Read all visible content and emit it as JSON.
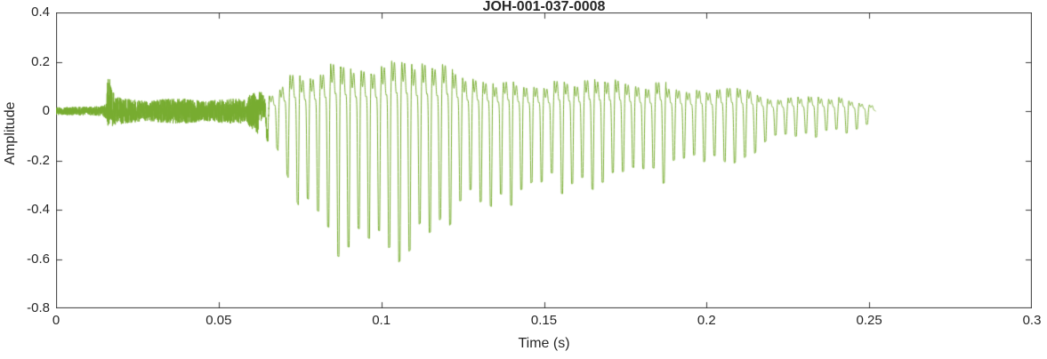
{
  "chart_data": {
    "type": "line",
    "title": "JOH-001-037-0008",
    "xlabel": "Time (s)",
    "ylabel": "Amplitude",
    "xlim": [
      0,
      0.3
    ],
    "ylim": [
      -0.8,
      0.4
    ],
    "x_ticks": [
      0,
      0.05,
      0.1,
      0.15,
      0.2,
      0.25,
      0.3
    ],
    "x_tick_labels": [
      "0",
      "0.05",
      "0.1",
      "0.15",
      "0.2",
      "0.25",
      "0.3"
    ],
    "y_ticks": [
      0.4,
      0.2,
      0,
      -0.2,
      -0.4,
      -0.6,
      -0.8
    ],
    "y_tick_labels": [
      "0.4",
      "0.2",
      "0",
      "-0.2",
      "-0.4",
      "-0.6",
      "-0.8"
    ],
    "grid": false,
    "legend": null,
    "line_color": "#77ac30",
    "axis_color": "#3a3a3a",
    "text_color": "#262626",
    "signal": {
      "description": "speech waveform amplitude envelope (hi = positive peak, lo = negative peak)",
      "t_end": 0.252,
      "fundamental_hz": 320,
      "harmonics": [
        1.0,
        0.55,
        0.35
      ],
      "harmonic_phases": [
        0,
        1.3,
        2.4
      ],
      "envelope": [
        {
          "t": 0.0,
          "hi": 0.015,
          "lo": -0.015
        },
        {
          "t": 0.014,
          "hi": 0.02,
          "lo": -0.02
        },
        {
          "t": 0.0155,
          "hi": 0.03,
          "lo": -0.03
        },
        {
          "t": 0.016,
          "hi": 0.155,
          "lo": -0.07
        },
        {
          "t": 0.018,
          "hi": 0.06,
          "lo": -0.06
        },
        {
          "t": 0.022,
          "hi": 0.05,
          "lo": -0.05
        },
        {
          "t": 0.028,
          "hi": 0.04,
          "lo": -0.04
        },
        {
          "t": 0.034,
          "hi": 0.05,
          "lo": -0.05
        },
        {
          "t": 0.04,
          "hi": 0.05,
          "lo": -0.05
        },
        {
          "t": 0.046,
          "hi": 0.04,
          "lo": -0.04
        },
        {
          "t": 0.052,
          "hi": 0.05,
          "lo": -0.05
        },
        {
          "t": 0.058,
          "hi": 0.05,
          "lo": -0.05
        },
        {
          "t": 0.061,
          "hi": 0.08,
          "lo": -0.08
        },
        {
          "t": 0.064,
          "hi": 0.13,
          "lo": -0.12
        },
        {
          "t": 0.068,
          "hi": 0.16,
          "lo": -0.2
        },
        {
          "t": 0.072,
          "hi": 0.3,
          "lo": -0.35
        },
        {
          "t": 0.076,
          "hi": 0.32,
          "lo": -0.48
        },
        {
          "t": 0.08,
          "hi": 0.3,
          "lo": -0.52
        },
        {
          "t": 0.084,
          "hi": 0.33,
          "lo": -0.55
        },
        {
          "t": 0.088,
          "hi": 0.34,
          "lo": -0.57
        },
        {
          "t": 0.092,
          "hi": 0.35,
          "lo": -0.58
        },
        {
          "t": 0.096,
          "hi": 0.34,
          "lo": -0.6
        },
        {
          "t": 0.1,
          "hi": 0.36,
          "lo": -0.62
        },
        {
          "t": 0.104,
          "hi": 0.35,
          "lo": -0.6
        },
        {
          "t": 0.108,
          "hi": 0.35,
          "lo": -0.56
        },
        {
          "t": 0.112,
          "hi": 0.36,
          "lo": -0.52
        },
        {
          "t": 0.116,
          "hi": 0.34,
          "lo": -0.5
        },
        {
          "t": 0.12,
          "hi": 0.33,
          "lo": -0.46
        },
        {
          "t": 0.124,
          "hi": 0.31,
          "lo": -0.42
        },
        {
          "t": 0.128,
          "hi": 0.25,
          "lo": -0.4
        },
        {
          "t": 0.132,
          "hi": 0.21,
          "lo": -0.38
        },
        {
          "t": 0.136,
          "hi": 0.22,
          "lo": -0.41
        },
        {
          "t": 0.14,
          "hi": 0.26,
          "lo": -0.43
        },
        {
          "t": 0.144,
          "hi": 0.23,
          "lo": -0.41
        },
        {
          "t": 0.148,
          "hi": 0.21,
          "lo": -0.36
        },
        {
          "t": 0.152,
          "hi": 0.22,
          "lo": -0.33
        },
        {
          "t": 0.156,
          "hi": 0.23,
          "lo": -0.34
        },
        {
          "t": 0.16,
          "hi": 0.21,
          "lo": -0.32
        },
        {
          "t": 0.164,
          "hi": 0.23,
          "lo": -0.31
        },
        {
          "t": 0.168,
          "hi": 0.26,
          "lo": -0.33
        },
        {
          "t": 0.172,
          "hi": 0.28,
          "lo": -0.31
        },
        {
          "t": 0.176,
          "hi": 0.25,
          "lo": -0.29
        },
        {
          "t": 0.18,
          "hi": 0.22,
          "lo": -0.3
        },
        {
          "t": 0.184,
          "hi": 0.21,
          "lo": -0.31
        },
        {
          "t": 0.188,
          "hi": 0.23,
          "lo": -0.29
        },
        {
          "t": 0.192,
          "hi": 0.2,
          "lo": -0.26
        },
        {
          "t": 0.196,
          "hi": 0.17,
          "lo": -0.24
        },
        {
          "t": 0.2,
          "hi": 0.16,
          "lo": -0.22
        },
        {
          "t": 0.204,
          "hi": 0.19,
          "lo": -0.23
        },
        {
          "t": 0.208,
          "hi": 0.21,
          "lo": -0.26
        },
        {
          "t": 0.212,
          "hi": 0.18,
          "lo": -0.22
        },
        {
          "t": 0.216,
          "hi": 0.14,
          "lo": -0.18
        },
        {
          "t": 0.22,
          "hi": 0.11,
          "lo": -0.14
        },
        {
          "t": 0.224,
          "hi": 0.1,
          "lo": -0.12
        },
        {
          "t": 0.228,
          "hi": 0.12,
          "lo": -0.11
        },
        {
          "t": 0.232,
          "hi": 0.11,
          "lo": -0.12
        },
        {
          "t": 0.236,
          "hi": 0.12,
          "lo": -0.1
        },
        {
          "t": 0.24,
          "hi": 0.11,
          "lo": -0.1
        },
        {
          "t": 0.244,
          "hi": 0.08,
          "lo": -0.09
        },
        {
          "t": 0.248,
          "hi": 0.07,
          "lo": -0.08
        },
        {
          "t": 0.251,
          "hi": 0.05,
          "lo": -0.06
        },
        {
          "t": 0.252,
          "hi": 0.0,
          "lo": 0.0
        }
      ]
    }
  }
}
